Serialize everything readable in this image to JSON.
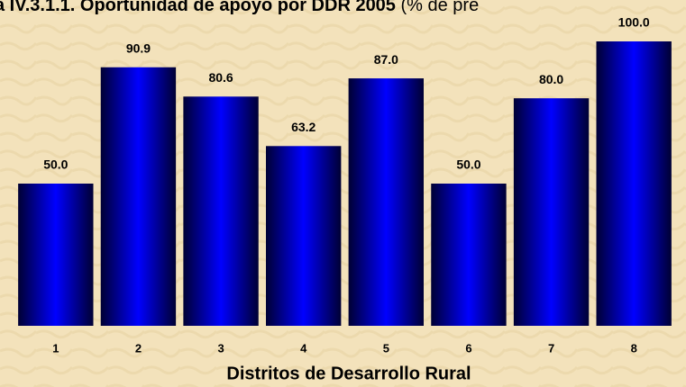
{
  "chart_data": {
    "type": "bar",
    "title": "a IV.3.1.1. Oportunidad de apoyo por DDR 2005",
    "subtitle": "(% de pre",
    "x_label": "Distritos de Desarrollo Rural",
    "categories": [
      "1",
      "2",
      "3",
      "4",
      "5",
      "6",
      "7",
      "8"
    ],
    "values": [
      50,
      90.9,
      80.6,
      63.2,
      87,
      50,
      80,
      100
    ],
    "value_labels": [
      "50.0",
      "90.9",
      "80.6",
      "63.2",
      "87.0",
      "50.0",
      "80.0",
      "100.0"
    ],
    "color": "#0000ff",
    "ylim": [
      0,
      100
    ]
  }
}
